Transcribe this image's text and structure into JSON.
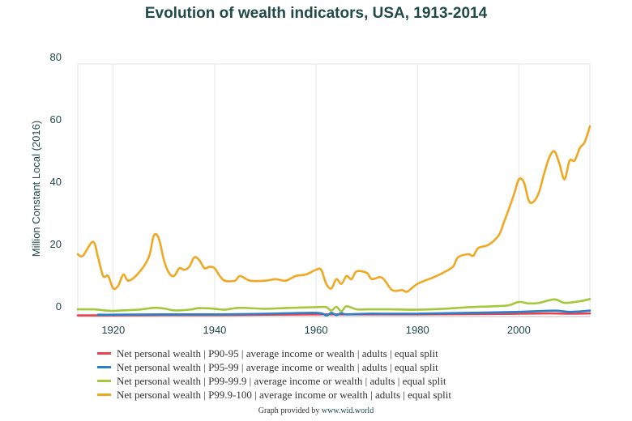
{
  "chart_data": {
    "type": "line",
    "title": "Evolution of wealth indicators, USA, 1913-2014",
    "xlabel": "",
    "ylabel": "Million Constant Local (2016)",
    "xlim": [
      1913,
      2014
    ],
    "ylim": [
      -1,
      80
    ],
    "x_ticks": [
      1920,
      1940,
      1960,
      1980,
      2000
    ],
    "y_ticks": [
      0,
      20,
      40,
      60,
      80
    ],
    "grid": "vertical",
    "legend_position": "bottom",
    "series": [
      {
        "name": "Net personal wealth | P90-95 | average income or wealth | adults | equal split",
        "color": "#e8414f",
        "points": [
          [
            1913,
            -0.6
          ],
          [
            1920,
            -0.6
          ],
          [
            1930,
            -0.5
          ],
          [
            1940,
            -0.5
          ],
          [
            1950,
            -0.4
          ],
          [
            1960,
            -0.3
          ],
          [
            1965,
            -0.3
          ],
          [
            1970,
            -0.3
          ],
          [
            1980,
            -0.3
          ],
          [
            1990,
            -0.2
          ],
          [
            2000,
            -0.1
          ],
          [
            2006,
            0.0
          ],
          [
            2010,
            -0.1
          ],
          [
            2014,
            0.0
          ]
        ]
      },
      {
        "name": "Net personal wealth | P95-99 | average income or wealth | adults | equal split",
        "color": "#2a7fc7",
        "points": [
          [
            1917,
            -0.4
          ],
          [
            1920,
            -0.4
          ],
          [
            1930,
            -0.3
          ],
          [
            1940,
            -0.3
          ],
          [
            1950,
            -0.1
          ],
          [
            1960,
            0.2
          ],
          [
            1962,
            -0.6
          ],
          [
            1963,
            0.2
          ],
          [
            1964,
            -0.5
          ],
          [
            1965,
            0.1
          ],
          [
            1966,
            -0.3
          ],
          [
            1970,
            -0.1
          ],
          [
            1980,
            -0.1
          ],
          [
            1990,
            0.2
          ],
          [
            2000,
            0.5
          ],
          [
            2007,
            0.9
          ],
          [
            2010,
            0.5
          ],
          [
            2014,
            0.9
          ]
        ]
      },
      {
        "name": "Net personal wealth | P99-99.9 | average income or wealth | adults | equal split",
        "color": "#a3c93a",
        "points": [
          [
            1913,
            1.3
          ],
          [
            1916,
            1.3
          ],
          [
            1919,
            0.9
          ],
          [
            1920,
            0.8
          ],
          [
            1922,
            1.0
          ],
          [
            1925,
            1.2
          ],
          [
            1928,
            1.8
          ],
          [
            1930,
            1.6
          ],
          [
            1932,
            1.0
          ],
          [
            1935,
            1.2
          ],
          [
            1937,
            1.7
          ],
          [
            1940,
            1.5
          ],
          [
            1942,
            1.2
          ],
          [
            1945,
            1.8
          ],
          [
            1950,
            1.5
          ],
          [
            1955,
            1.8
          ],
          [
            1960,
            2.0
          ],
          [
            1962,
            2.0
          ],
          [
            1963,
            0.9
          ],
          [
            1964,
            2.1
          ],
          [
            1965,
            0.7
          ],
          [
            1966,
            2.3
          ],
          [
            1968,
            1.3
          ],
          [
            1970,
            1.3
          ],
          [
            1975,
            1.3
          ],
          [
            1980,
            1.2
          ],
          [
            1985,
            1.5
          ],
          [
            1990,
            2.0
          ],
          [
            1995,
            2.3
          ],
          [
            1998,
            2.6
          ],
          [
            2000,
            3.7
          ],
          [
            2002,
            3.2
          ],
          [
            2004,
            3.4
          ],
          [
            2007,
            4.5
          ],
          [
            2009,
            3.4
          ],
          [
            2012,
            3.9
          ],
          [
            2014,
            4.6
          ]
        ]
      },
      {
        "name": "Net personal wealth | P99.9-100 | average income or wealth | adults | equal split",
        "color": "#f0a823",
        "points": [
          [
            1913,
            19
          ],
          [
            1914,
            18.5
          ],
          [
            1916,
            23
          ],
          [
            1917,
            18
          ],
          [
            1918,
            12
          ],
          [
            1919,
            12
          ],
          [
            1920,
            8
          ],
          [
            1921,
            9
          ],
          [
            1922,
            12.5
          ],
          [
            1923,
            10.5
          ],
          [
            1925,
            13
          ],
          [
            1927,
            18
          ],
          [
            1928,
            25
          ],
          [
            1929,
            24
          ],
          [
            1930,
            17
          ],
          [
            1931,
            13
          ],
          [
            1932,
            12
          ],
          [
            1933,
            14.5
          ],
          [
            1934,
            14
          ],
          [
            1935,
            15
          ],
          [
            1936,
            18
          ],
          [
            1937,
            17
          ],
          [
            1938,
            14.5
          ],
          [
            1939,
            15
          ],
          [
            1940,
            14.5
          ],
          [
            1941,
            12
          ],
          [
            1942,
            10.5
          ],
          [
            1944,
            10.5
          ],
          [
            1945,
            12
          ],
          [
            1947,
            10.5
          ],
          [
            1950,
            10.5
          ],
          [
            1952,
            11
          ],
          [
            1954,
            10.5
          ],
          [
            1956,
            12
          ],
          [
            1958,
            12.5
          ],
          [
            1960,
            14
          ],
          [
            1961,
            14
          ],
          [
            1962,
            9.5
          ],
          [
            1963,
            8
          ],
          [
            1964,
            11
          ],
          [
            1965,
            9.5
          ],
          [
            1966,
            12
          ],
          [
            1967,
            11
          ],
          [
            1968,
            13.5
          ],
          [
            1970,
            13
          ],
          [
            1971,
            11
          ],
          [
            1973,
            11.5
          ],
          [
            1975,
            7.5
          ],
          [
            1977,
            7.5
          ],
          [
            1978,
            7
          ],
          [
            1980,
            9.5
          ],
          [
            1983,
            11.5
          ],
          [
            1985,
            13
          ],
          [
            1987,
            15
          ],
          [
            1988,
            18
          ],
          [
            1990,
            19
          ],
          [
            1991,
            18.5
          ],
          [
            1992,
            21
          ],
          [
            1994,
            22
          ],
          [
            1996,
            25
          ],
          [
            1997,
            29
          ],
          [
            1999,
            38
          ],
          [
            2000,
            43
          ],
          [
            2001,
            42
          ],
          [
            2002,
            36
          ],
          [
            2003,
            36
          ],
          [
            2004,
            39
          ],
          [
            2005,
            45
          ],
          [
            2006,
            50
          ],
          [
            2007,
            52
          ],
          [
            2008,
            48
          ],
          [
            2009,
            43
          ],
          [
            2010,
            49
          ],
          [
            2011,
            49
          ],
          [
            2012,
            53
          ],
          [
            2013,
            55
          ],
          [
            2014,
            60
          ]
        ]
      }
    ]
  },
  "credit": {
    "prefix": "Graph provided by ",
    "source": "www.wid.world"
  }
}
